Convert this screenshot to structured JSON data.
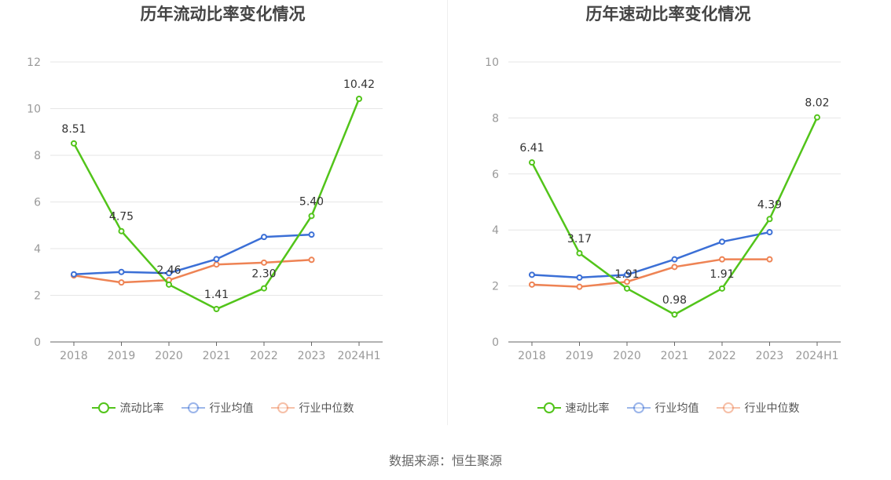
{
  "source": "数据来源：恒生聚源",
  "chart_data": [
    {
      "type": "line",
      "title": "历年流动比率变化情况",
      "categories": [
        "2018",
        "2019",
        "2020",
        "2021",
        "2022",
        "2023",
        "2024H1"
      ],
      "ylim": [
        0,
        12
      ],
      "yticks": [
        0,
        2,
        4,
        6,
        8,
        10,
        12
      ],
      "grid": true,
      "legend_position": "bottom",
      "series": [
        {
          "name": "流动比率",
          "color": "#52c41a",
          "labeled": true,
          "values": [
            8.51,
            4.75,
            2.46,
            1.41,
            2.3,
            5.4,
            10.42
          ],
          "labels": [
            "8.51",
            "4.75",
            "2.46",
            "1.41",
            "2.30",
            "5.40",
            "10.42"
          ]
        },
        {
          "name": "行业均值",
          "color": "#3b6fd6",
          "labeled": false,
          "values": [
            2.9,
            3.0,
            2.95,
            3.55,
            4.5,
            4.6,
            null
          ]
        },
        {
          "name": "行业中位数",
          "color": "#ee8354",
          "labeled": false,
          "values": [
            2.85,
            2.55,
            2.65,
            3.32,
            3.4,
            3.52,
            null
          ]
        }
      ]
    },
    {
      "type": "line",
      "title": "历年速动比率变化情况",
      "categories": [
        "2018",
        "2019",
        "2020",
        "2021",
        "2022",
        "2023",
        "2024H1"
      ],
      "ylim": [
        0,
        10
      ],
      "yticks": [
        0,
        2,
        4,
        6,
        8,
        10
      ],
      "grid": true,
      "legend_position": "bottom",
      "series": [
        {
          "name": "速动比率",
          "color": "#52c41a",
          "labeled": true,
          "values": [
            6.41,
            3.17,
            1.91,
            0.98,
            1.91,
            4.39,
            8.02
          ],
          "labels": [
            "6.41",
            "3.17",
            "1.91",
            "0.98",
            "1.91",
            "4.39",
            "8.02"
          ]
        },
        {
          "name": "行业均值",
          "color": "#3b6fd6",
          "labeled": false,
          "values": [
            2.4,
            2.3,
            2.4,
            2.95,
            3.58,
            3.92,
            null
          ]
        },
        {
          "name": "行业中位数",
          "color": "#ee8354",
          "labeled": false,
          "values": [
            2.05,
            1.97,
            2.15,
            2.68,
            2.95,
            2.95,
            null
          ]
        }
      ]
    }
  ]
}
